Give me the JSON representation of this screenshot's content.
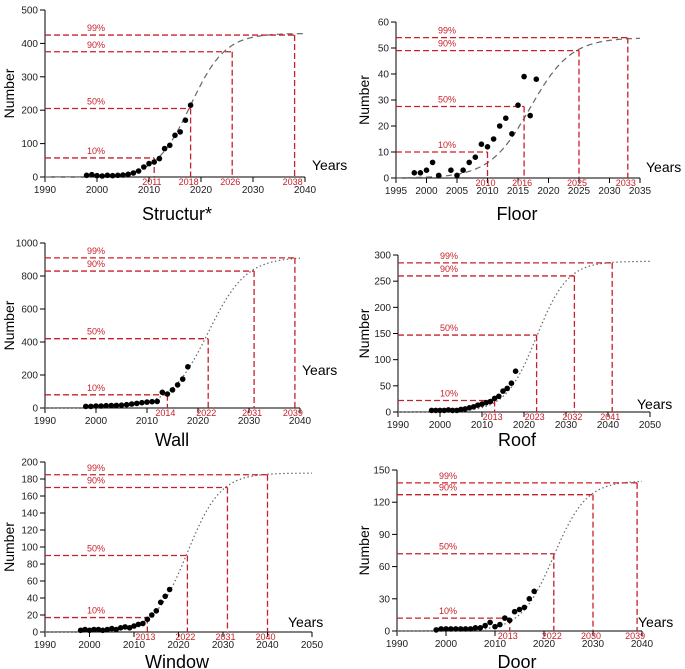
{
  "chart_data": [
    {
      "type": "scatter",
      "title": "Structur*",
      "ylabel": "Number",
      "xlabel": "Years",
      "xlim": [
        1990,
        2040
      ],
      "ylim": [
        0,
        500
      ],
      "xticks": [
        1990,
        2000,
        2010,
        2020,
        2030,
        2040
      ],
      "yticks": [
        0,
        100,
        200,
        300,
        400,
        500
      ],
      "curve_style": "dashed",
      "asymptote": 430,
      "midpoint": 2018,
      "growth_rate": 0.3,
      "levels": [
        {
          "label": "10%",
          "value": 57,
          "year": 2011
        },
        {
          "label": "50%",
          "value": 205,
          "year": 2018
        },
        {
          "label": "90%",
          "value": 375,
          "year": 2026
        },
        {
          "label": "99%",
          "value": 425,
          "year": 2038
        }
      ],
      "points": [
        [
          1998,
          5
        ],
        [
          1999,
          7
        ],
        [
          2000,
          4
        ],
        [
          2001,
          3
        ],
        [
          2002,
          5
        ],
        [
          2003,
          4
        ],
        [
          2004,
          5
        ],
        [
          2005,
          6
        ],
        [
          2006,
          8
        ],
        [
          2007,
          12
        ],
        [
          2008,
          18
        ],
        [
          2009,
          30
        ],
        [
          2010,
          40
        ],
        [
          2011,
          45
        ],
        [
          2012,
          55
        ],
        [
          2013,
          85
        ],
        [
          2014,
          95
        ],
        [
          2015,
          125
        ],
        [
          2016,
          135
        ],
        [
          2017,
          170
        ],
        [
          2018,
          215
        ]
      ]
    },
    {
      "type": "scatter",
      "title": "Floor",
      "ylabel": "Number",
      "xlabel": "Years",
      "xlim": [
        1995,
        2035
      ],
      "ylim": [
        0,
        60
      ],
      "xticks": [
        1995,
        2000,
        2005,
        2010,
        2015,
        2020,
        2025,
        2030,
        2035
      ],
      "yticks": [
        0,
        10,
        20,
        30,
        40,
        50,
        60
      ],
      "curve_style": "dashed",
      "asymptote": 54,
      "midpoint": 2017,
      "growth_rate": 0.3,
      "levels": [
        {
          "label": "10%",
          "value": 10,
          "year": 2010
        },
        {
          "label": "50%",
          "value": 27.5,
          "year": 2016
        },
        {
          "label": "90%",
          "value": 49,
          "year": 2025
        },
        {
          "label": "99%",
          "value": 54,
          "year": 2033
        }
      ],
      "points": [
        [
          1998,
          2
        ],
        [
          1999,
          2
        ],
        [
          2000,
          3
        ],
        [
          2001,
          6
        ],
        [
          2002,
          1
        ],
        [
          2004,
          3
        ],
        [
          2005,
          1
        ],
        [
          2006,
          3
        ],
        [
          2007,
          6
        ],
        [
          2008,
          8
        ],
        [
          2009,
          13
        ],
        [
          2010,
          12
        ],
        [
          2011,
          15
        ],
        [
          2012,
          20
        ],
        [
          2013,
          23
        ],
        [
          2014,
          17
        ],
        [
          2015,
          28
        ],
        [
          2016,
          39
        ],
        [
          2017,
          24
        ],
        [
          2018,
          38
        ]
      ]
    },
    {
      "type": "scatter",
      "title": "Wall",
      "ylabel": "Number",
      "xlabel": "Years",
      "xlim": [
        1990,
        2040
      ],
      "ylim": [
        0,
        1000
      ],
      "xticks": [
        1990,
        2000,
        2010,
        2020,
        2030,
        2040
      ],
      "yticks": [
        0,
        200,
        400,
        600,
        800,
        1000
      ],
      "curve_style": "dotted",
      "asymptote": 915,
      "midpoint": 2022,
      "growth_rate": 0.27,
      "levels": [
        {
          "label": "10%",
          "value": 80,
          "year": 2014
        },
        {
          "label": "50%",
          "value": 420,
          "year": 2022
        },
        {
          "label": "90%",
          "value": 830,
          "year": 2031
        },
        {
          "label": "99%",
          "value": 910,
          "year": 2039
        }
      ],
      "points": [
        [
          1998,
          10
        ],
        [
          1999,
          10
        ],
        [
          2000,
          12
        ],
        [
          2001,
          12
        ],
        [
          2002,
          14
        ],
        [
          2003,
          15
        ],
        [
          2004,
          16
        ],
        [
          2005,
          17
        ],
        [
          2006,
          20
        ],
        [
          2007,
          24
        ],
        [
          2008,
          28
        ],
        [
          2009,
          32
        ],
        [
          2010,
          36
        ],
        [
          2011,
          38
        ],
        [
          2012,
          40
        ],
        [
          2013,
          95
        ],
        [
          2014,
          85
        ],
        [
          2015,
          110
        ],
        [
          2016,
          140
        ],
        [
          2017,
          175
        ],
        [
          2018,
          250
        ]
      ]
    },
    {
      "type": "scatter",
      "title": "Roof",
      "ylabel": "Number",
      "xlabel": "Years",
      "xlim": [
        1990,
        2050
      ],
      "ylim": [
        0,
        300
      ],
      "xticks": [
        1990,
        2000,
        2010,
        2020,
        2030,
        2040,
        2050
      ],
      "yticks": [
        0,
        50,
        100,
        150,
        200,
        250,
        300
      ],
      "curve_style": "dotted",
      "asymptote": 288,
      "midpoint": 2023,
      "growth_rate": 0.27,
      "levels": [
        {
          "label": "10%",
          "value": 22,
          "year": 2013
        },
        {
          "label": "50%",
          "value": 147,
          "year": 2023
        },
        {
          "label": "90%",
          "value": 260,
          "year": 2032
        },
        {
          "label": "99%",
          "value": 285,
          "year": 2041
        }
      ],
      "points": [
        [
          1998,
          3
        ],
        [
          1999,
          3
        ],
        [
          2000,
          3
        ],
        [
          2001,
          3
        ],
        [
          2002,
          4
        ],
        [
          2003,
          3
        ],
        [
          2004,
          3
        ],
        [
          2005,
          5
        ],
        [
          2006,
          6
        ],
        [
          2007,
          8
        ],
        [
          2008,
          10
        ],
        [
          2009,
          13
        ],
        [
          2010,
          15
        ],
        [
          2011,
          18
        ],
        [
          2012,
          20
        ],
        [
          2013,
          26
        ],
        [
          2014,
          30
        ],
        [
          2015,
          40
        ],
        [
          2016,
          45
        ],
        [
          2017,
          55
        ],
        [
          2018,
          78
        ]
      ]
    },
    {
      "type": "scatter",
      "title": "Window",
      "ylabel": "Number",
      "xlabel": "Years",
      "xlim": [
        1990,
        2050
      ],
      "ylim": [
        0,
        200
      ],
      "xticks": [
        1990,
        2000,
        2010,
        2020,
        2030,
        2040,
        2050
      ],
      "yticks": [
        0,
        20,
        40,
        60,
        80,
        100,
        120,
        140,
        160,
        180,
        200
      ],
      "curve_style": "dotted",
      "asymptote": 187,
      "midpoint": 2022,
      "growth_rate": 0.27,
      "levels": [
        {
          "label": "10%",
          "value": 17,
          "year": 2013
        },
        {
          "label": "50%",
          "value": 90,
          "year": 2022
        },
        {
          "label": "90%",
          "value": 170,
          "year": 2031
        },
        {
          "label": "99%",
          "value": 185,
          "year": 2040
        }
      ],
      "points": [
        [
          1998,
          2
        ],
        [
          1999,
          3
        ],
        [
          2000,
          2
        ],
        [
          2001,
          3
        ],
        [
          2002,
          3
        ],
        [
          2003,
          2
        ],
        [
          2004,
          3
        ],
        [
          2005,
          4
        ],
        [
          2006,
          3
        ],
        [
          2007,
          5
        ],
        [
          2008,
          6
        ],
        [
          2009,
          5
        ],
        [
          2010,
          7
        ],
        [
          2011,
          9
        ],
        [
          2012,
          10
        ],
        [
          2013,
          15
        ],
        [
          2014,
          20
        ],
        [
          2015,
          25
        ],
        [
          2016,
          35
        ],
        [
          2017,
          42
        ],
        [
          2018,
          50
        ]
      ]
    },
    {
      "type": "scatter",
      "title": "Door",
      "ylabel": "Number",
      "xlabel": "Years",
      "xlim": [
        1990,
        2040
      ],
      "ylim": [
        0,
        150
      ],
      "xticks": [
        1990,
        2000,
        2010,
        2020,
        2030,
        2040
      ],
      "yticks": [
        0,
        30,
        60,
        90,
        120,
        150
      ],
      "curve_style": "dotted",
      "asymptote": 140,
      "midpoint": 2022,
      "growth_rate": 0.3,
      "levels": [
        {
          "label": "10%",
          "value": 12,
          "year": 2013
        },
        {
          "label": "50%",
          "value": 72,
          "year": 2022
        },
        {
          "label": "90%",
          "value": 127,
          "year": 2030
        },
        {
          "label": "99%",
          "value": 138,
          "year": 2039
        }
      ],
      "points": [
        [
          1998,
          1
        ],
        [
          1999,
          2
        ],
        [
          2000,
          2
        ],
        [
          2001,
          2
        ],
        [
          2002,
          2
        ],
        [
          2003,
          2
        ],
        [
          2004,
          2
        ],
        [
          2005,
          2
        ],
        [
          2006,
          3
        ],
        [
          2007,
          3
        ],
        [
          2008,
          5
        ],
        [
          2009,
          8
        ],
        [
          2010,
          4
        ],
        [
          2011,
          6
        ],
        [
          2012,
          12
        ],
        [
          2013,
          10
        ],
        [
          2014,
          18
        ],
        [
          2015,
          20
        ],
        [
          2016,
          22
        ],
        [
          2017,
          30
        ],
        [
          2018,
          37
        ]
      ]
    }
  ]
}
